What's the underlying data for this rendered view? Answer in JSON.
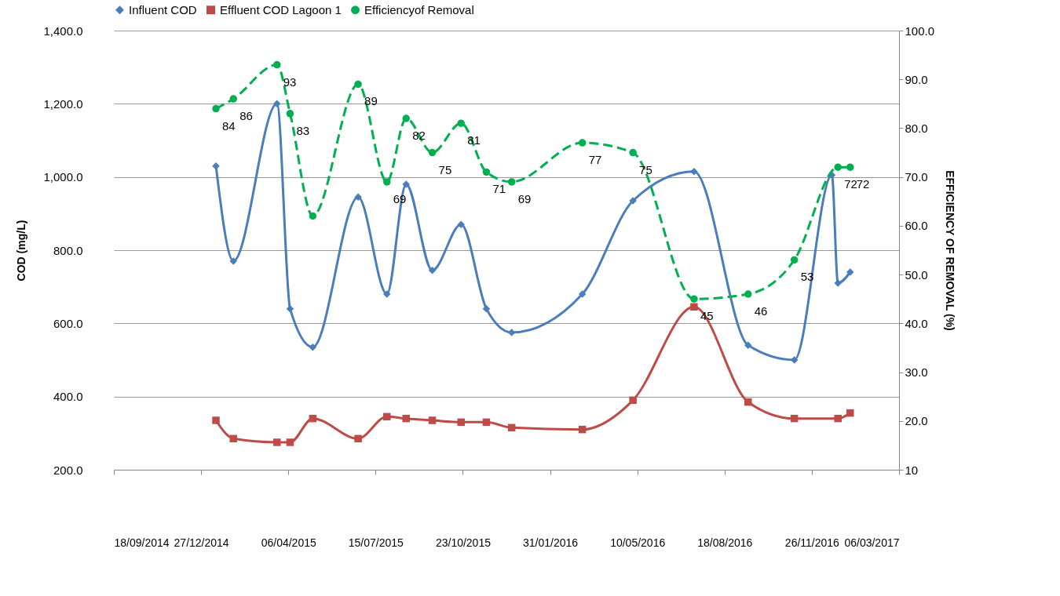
{
  "chart_data": {
    "type": "line",
    "ylabel": "COD (mg/L)",
    "y2label": "EFFICIENCY OF REMOVAL (%)",
    "xlim": [
      "2014-09-18",
      "2017-03-06"
    ],
    "xticks": [
      {
        "value": "2014-09-18",
        "label": "18/09/2014"
      },
      {
        "value": "2014-12-27",
        "label": "27/12/2014"
      },
      {
        "value": "2015-04-06",
        "label": "06/04/2015"
      },
      {
        "value": "2015-07-15",
        "label": "15/07/2015"
      },
      {
        "value": "2015-10-23",
        "label": "23/10/2015"
      },
      {
        "value": "2016-01-31",
        "label": "31/01/2016"
      },
      {
        "value": "2016-05-10",
        "label": "10/05/2016"
      },
      {
        "value": "2016-08-18",
        "label": "18/08/2016"
      },
      {
        "value": "2016-11-26",
        "label": "26/11/2016"
      },
      {
        "value": "2017-03-06",
        "label": "06/03/2017"
      }
    ],
    "ylim": [
      200,
      1400
    ],
    "yticks": [
      {
        "value": 200,
        "label": "200.0"
      },
      {
        "value": 400,
        "label": "400.0"
      },
      {
        "value": 600,
        "label": "600.0"
      },
      {
        "value": 800,
        "label": "800.0"
      },
      {
        "value": 1000,
        "label": "1,000.0"
      },
      {
        "value": 1200,
        "label": "1,200.0"
      },
      {
        "value": 1400,
        "label": "1,400.0"
      }
    ],
    "y2lim": [
      10,
      100
    ],
    "y2ticks": [
      10,
      {
        "value": 20,
        "label": "20.0"
      },
      {
        "value": 30,
        "label": "30.0"
      },
      {
        "value": 40,
        "label": "40.0"
      },
      {
        "value": 50,
        "label": "50.0"
      },
      {
        "value": 60,
        "label": "60.0"
      },
      {
        "value": 70,
        "label": "70.0"
      },
      {
        "value": 80,
        "label": "80.0"
      },
      {
        "value": 90,
        "label": "90.0"
      },
      {
        "value": 100,
        "label": "100.0"
      }
    ],
    "grid": "y",
    "legend": "top",
    "series": [
      {
        "name": "Influent COD",
        "color": "#4a7ebb",
        "marker": "diamond",
        "line_style": "solid",
        "x": [
          "2015-01-13",
          "2015-02-02",
          "2015-03-24",
          "2015-04-08",
          "2015-05-04",
          "2015-06-25",
          "2015-07-28",
          "2015-08-19",
          "2015-09-18",
          "2015-10-21",
          "2015-11-19",
          "2015-12-18",
          "2016-03-08",
          "2016-05-05",
          "2016-07-14",
          "2016-09-14",
          "2016-11-06",
          "2016-12-19",
          "2016-12-26",
          "2017-01-09"
        ],
        "values": [
          1030,
          770,
          1200,
          640,
          535,
          945,
          680,
          980,
          745,
          870,
          640,
          575,
          680,
          935,
          1015,
          540,
          500,
          1005,
          710,
          740
        ]
      },
      {
        "name": "Effluent COD Lagoon 1",
        "color": "#be4b48",
        "marker": "square",
        "line_style": "solid",
        "x": [
          "2015-01-13",
          "2015-02-02",
          "2015-03-24",
          "2015-04-08",
          "2015-05-04",
          "2015-06-25",
          "2015-07-28",
          "2015-08-19",
          "2015-09-18",
          "2015-10-21",
          "2015-11-19",
          "2015-12-18",
          "2016-03-08",
          "2016-05-05",
          "2016-07-14",
          "2016-09-14",
          "2016-11-06",
          "2016-12-26",
          "2017-01-09"
        ],
        "values": [
          335,
          285,
          275,
          275,
          340,
          285,
          345,
          340,
          335,
          330,
          330,
          315,
          310,
          390,
          645,
          385,
          340,
          340,
          355
        ]
      },
      {
        "name": "Efficiencyof Removal",
        "color": "#00b050",
        "marker": "circle",
        "line_style": "dashed",
        "axis": "y2",
        "x": [
          "2015-01-13",
          "2015-02-02",
          "2015-03-24",
          "2015-04-08",
          "2015-05-04",
          "2015-06-25",
          "2015-07-28",
          "2015-08-19",
          "2015-09-18",
          "2015-10-21",
          "2015-11-19",
          "2015-12-18",
          "2016-03-08",
          "2016-05-05",
          "2016-07-14",
          "2016-09-14",
          "2016-11-06",
          "2016-12-26",
          "2017-01-09"
        ],
        "values": [
          84,
          86,
          93,
          83,
          62,
          89,
          69,
          82,
          75,
          81,
          71,
          69,
          77,
          75,
          45,
          46,
          53,
          72,
          72
        ],
        "value_labels": [
          "84",
          "86",
          "93",
          "83",
          null,
          "89",
          "69",
          "82",
          "75",
          "81",
          "71",
          "69",
          "77",
          "75",
          "45",
          "46",
          "53",
          "72",
          "72"
        ]
      }
    ]
  }
}
